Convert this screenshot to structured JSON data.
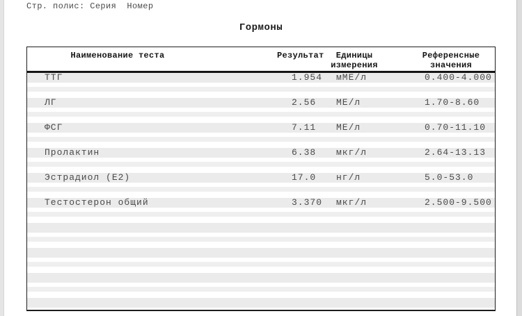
{
  "page": {
    "policy_note": "Стр. полис: Серия  Номер",
    "title": "Гормоны"
  },
  "table": {
    "columns": {
      "name": "Наименование теста",
      "result": "Результат",
      "units": "Единицы измерения",
      "reference": "Референсные значения"
    },
    "rows": [
      {
        "name": "ТТГ",
        "result": "1.954",
        "units": "мМЕ/л",
        "reference": "0.400-4.000"
      },
      {
        "name": "ЛГ",
        "result": "2.56",
        "units": "МЕ/л",
        "reference": "1.70-8.60"
      },
      {
        "name": "ФСГ",
        "result": "7.11",
        "units": "МЕ/л",
        "reference": "0.70-11.10"
      },
      {
        "name": "Пролактин",
        "result": "6.38",
        "units": "мкг/л",
        "reference": "2.64-13.13"
      },
      {
        "name": "Эстрадиол (Е2)",
        "result": "17.0",
        "units": "нг/л",
        "reference": "5.0-53.0"
      },
      {
        "name": "Тестостерон общий",
        "result": "3.370",
        "units": "мкг/л",
        "reference": "2.500-9.500"
      }
    ],
    "empty_row_count": 4
  },
  "colors": {
    "stripe": "#ebebeb",
    "stripe_thin": "#efefef",
    "table_border": "#1d1d1d",
    "body_text": "#4a4a4a",
    "header_text": "#151515",
    "page_edge_left": "#e5e5e5",
    "page_edge_right": "#dcdcdc"
  }
}
